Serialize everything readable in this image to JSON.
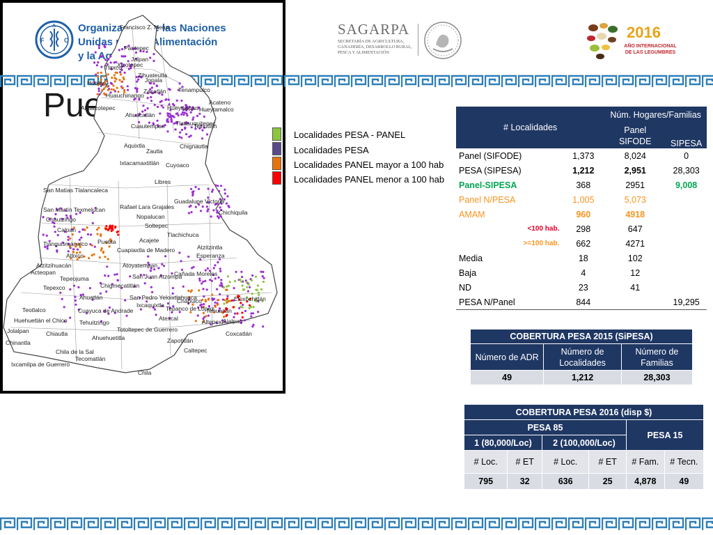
{
  "header": {
    "fao": {
      "lines": [
        "Organización de las Naciones",
        "Unidas para la Alimentación",
        "y la Agricultura"
      ],
      "emblem_letters": "FAO",
      "emblem_motto": "FIAT PANIS"
    },
    "sagarpa": {
      "title": "SAGARPA",
      "subtitle": [
        "Secretaría de Agricultura,",
        "Ganadería, Desarrollo Rural,",
        "Pesca y Alimentación"
      ]
    },
    "legumbres": {
      "year": "2016",
      "lines": [
        "AÑO INTERNACIONAL",
        "DE LAS LEGUMBRES"
      ]
    }
  },
  "title": "Puebla",
  "legend": [
    {
      "label": "Localidades PESA - PANEL",
      "color": "#8cc63f"
    },
    {
      "label": "Localidades PESA",
      "color": "#5b4a8b"
    },
    {
      "label": "Localidades PANEL mayor a 100 hab",
      "color": "#e8730c"
    },
    {
      "label": "Localidades PANEL menor a 100 hab",
      "color": "#ff0000"
    }
  ],
  "map": {
    "places": [
      "Francisco Z. Mena",
      "Pantepec",
      "Jalpan",
      "Tlaxco",
      "Xicotepec",
      "Zihuateutla",
      "Honey",
      "Jopala",
      "Tenampulco",
      "Huauchinango",
      "Zacatlán",
      "Hueytlalpan",
      "Acateno",
      "Ahuazotepec",
      "Ahuacatlán",
      "Hueytamalco",
      "Cuautempan",
      "Tlatlauquitepec",
      "Teziutlán",
      "Aquixtla",
      "Chignautla",
      "Zautla",
      "Ixtacamaxtitlán",
      "Cuyoaco",
      "Libres",
      "Guadalupe Victoria",
      "San Matías Tlalancaleca",
      "San Martín Texmelucan",
      "Chichiquila",
      "Chautzingo",
      "Rafael Lara Grajales",
      "Nopalucan",
      "Calpan",
      "Soltepec",
      "Atzitzintla",
      "Tianguismanalco",
      "Puebla",
      "Acajete",
      "Tlachichuca",
      "Atlixco",
      "Cuapiaxtla de Madero",
      "Esperanza",
      "Atzitzihuacán",
      "Atoyatempan",
      "Acteopan",
      "Tepeojuma",
      "San Juan Atzompa",
      "Cañada Morelos",
      "Tepexco",
      "Chigmecatitlán",
      "Ahuatlán",
      "San Pedro Yeloixtlahuaca",
      "Chapulco",
      "Tepanco de López",
      "Eloxochitlán",
      "Tehuacán",
      "Ixcaquixtla",
      "Teotlalco",
      "Cuayuca de Andrade",
      "Atexcal",
      "Ajalpan",
      "Huehuetlán el Chico",
      "Tehuitzingo",
      "Altepexi",
      "Coxcatlán",
      "Jolalpan",
      "Chiautla",
      "Totoltepec de Guerrero",
      "Zapotitlán",
      "Chinantla",
      "Ahuehuetitla",
      "Caltepec",
      "Chila de la Sal",
      "Tecomatlán",
      "Ixcamilpa de Guerrero",
      "Chila"
    ]
  },
  "table_localidades": {
    "head_left": "# Localidades",
    "head_group": "Núm. Hogares/Familias",
    "head_sub": [
      "Panel SIFODE",
      "SIPESA"
    ],
    "rows": [
      {
        "label": "Panel (SIFODE)",
        "loc": "1,373",
        "panel": "8,024",
        "sipesa": "0"
      },
      {
        "label": "PESA (SIPESA)",
        "loc": "1,212",
        "panel": "2,951",
        "sipesa": "28,303"
      },
      {
        "label": "Panel-SIPESA",
        "loc": "368",
        "panel": "2951",
        "sipesa": "9,008"
      },
      {
        "label": "Panel N/PESA",
        "loc": "1,005",
        "panel": "5,073",
        "sipesa": ""
      },
      {
        "label": "AMAM",
        "loc": "960",
        "panel": "4918",
        "sipesa": ""
      },
      {
        "label": "<100 hab.",
        "loc": "298",
        "panel": "647",
        "sipesa": ""
      },
      {
        "label": ">=100 hab.",
        "loc": "662",
        "panel": "4271",
        "sipesa": ""
      },
      {
        "label": "Media",
        "loc": "18",
        "panel": "102",
        "sipesa": ""
      },
      {
        "label": "Baja",
        "loc": "4",
        "panel": "12",
        "sipesa": ""
      },
      {
        "label": "ND",
        "loc": "23",
        "panel": "41",
        "sipesa": ""
      },
      {
        "label": "PESA N/Panel",
        "loc": "844",
        "panel": "",
        "sipesa": "19,295"
      }
    ]
  },
  "table_cobertura_2015": {
    "title": "COBERTURA  PESA 2015 (SiPESA)",
    "headers": [
      "Número de ADR",
      "Número de Localidades",
      "Número de Familias"
    ],
    "values": [
      "49",
      "1,212",
      "28,303"
    ]
  },
  "table_cobertura_2016": {
    "title": "COBERTURA PESA 2016 (disp $)",
    "group_a": "PESA 85",
    "group_b": "PESA 15",
    "sub_a1": "1 (80,000/Loc)",
    "sub_a2": "2 (100,000/Loc)",
    "cols": [
      "#  Loc.",
      "# ET",
      "# Loc.",
      "# ET",
      "# Fam.",
      "# Tecn."
    ],
    "values": [
      "795",
      "32",
      "636",
      "25",
      "4,878",
      "49"
    ]
  }
}
